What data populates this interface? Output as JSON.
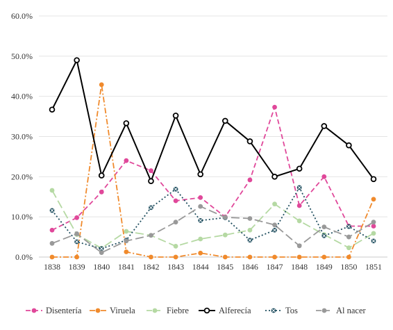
{
  "chart_data": {
    "type": "line",
    "title": "",
    "xlabel": "",
    "ylabel": "",
    "categories": [
      "1838",
      "1839",
      "1840",
      "1841",
      "1842",
      "1843",
      "1844",
      "1845",
      "1846",
      "1847",
      "1848",
      "1849",
      "1850",
      "1851"
    ],
    "ylim": [
      0,
      60
    ],
    "y_ticks": [
      "0.0%",
      "10.0%",
      "20.0%",
      "30.0%",
      "40.0%",
      "50.0%",
      "60.0%"
    ],
    "grid": "horizontal",
    "legend_position": "bottom",
    "series": [
      {
        "name": "Disentería",
        "color": "#e0489a",
        "dash": "dashed",
        "marker": "circle",
        "values": [
          6.7,
          9.8,
          16.2,
          24.0,
          21.5,
          14.0,
          14.8,
          10.0,
          19.2,
          37.3,
          12.8,
          20.0,
          7.7,
          7.7
        ]
      },
      {
        "name": "Viruela",
        "color": "#f08a2c",
        "dash": "dashdot",
        "marker": "circle",
        "values": [
          0.0,
          0.0,
          42.9,
          1.3,
          0.0,
          0.0,
          1.0,
          0.0,
          0.0,
          0.0,
          0.0,
          0.0,
          0.0,
          14.4
        ]
      },
      {
        "name": "Fiebre",
        "color": "#b5d9a3",
        "dash": "longdash",
        "marker": "circle",
        "values": [
          16.6,
          5.6,
          2.2,
          6.4,
          5.4,
          2.7,
          4.5,
          5.5,
          6.7,
          13.2,
          9.0,
          5.6,
          2.3,
          5.9
        ]
      },
      {
        "name": "Alferecía",
        "color": "#000000",
        "dash": "solid",
        "marker": "hollow",
        "values": [
          36.7,
          49.0,
          20.3,
          33.3,
          18.9,
          35.2,
          20.6,
          33.9,
          28.8,
          20.0,
          22.0,
          32.6,
          27.8,
          19.4
        ]
      },
      {
        "name": "Tos",
        "color": "#1f4e5f",
        "dash": "dotted",
        "marker": "x",
        "values": [
          11.6,
          3.8,
          2.1,
          4.2,
          12.3,
          16.9,
          9.1,
          9.8,
          4.2,
          6.7,
          17.3,
          5.3,
          7.6,
          4.0
        ]
      },
      {
        "name": "Al nacer",
        "color": "#999999",
        "dash": "longdash",
        "marker": "circle",
        "values": [
          3.4,
          5.8,
          1.1,
          4.0,
          5.4,
          8.7,
          12.6,
          9.9,
          9.6,
          8.0,
          2.8,
          7.5,
          5.0,
          8.7
        ]
      }
    ]
  }
}
